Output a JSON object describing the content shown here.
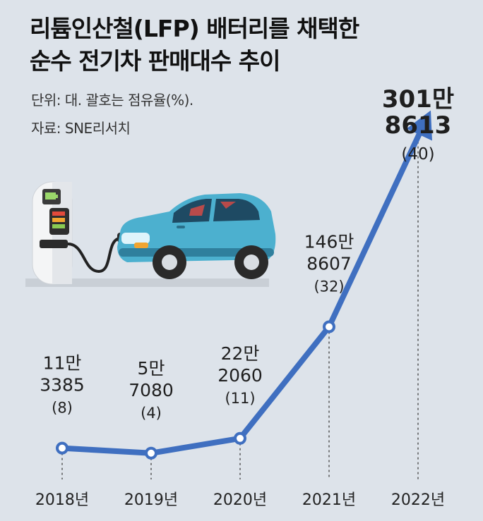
{
  "header": {
    "title_line1": "리튬인산철(LFP) 배터리를 채택한",
    "title_line2": "순수 전기차 판매대수 추이",
    "unit_note": "단위: 대. 괄호는 점유율(%).",
    "source": "자료: SNE리서치"
  },
  "chart_data": {
    "type": "line",
    "title": "리튬인산철(LFP) 배터리를 채택한 순수 전기차 판매대수 추이",
    "unit": "대",
    "categories": [
      "2018년",
      "2019년",
      "2020년",
      "2021년",
      "2022년"
    ],
    "series": [
      {
        "values": [
          113385,
          57080,
          222060,
          1468607,
          3018613
        ],
        "share_percent": [
          8,
          4,
          11,
          32,
          40
        ],
        "labels_top": [
          "11만",
          "5만",
          "22만",
          "146만",
          "301만"
        ],
        "labels_bottom": [
          "3385",
          "7080",
          "2060",
          "8607",
          "8613"
        ],
        "labels_share": [
          "(8)",
          "(4)",
          "(11)",
          "(32)",
          "(40)"
        ]
      }
    ],
    "colors": {
      "line": "#3f6fc0",
      "highlight_text": "#111111"
    },
    "grid": false,
    "last_point_arrow": true,
    "illustration": "electric-car-charging"
  }
}
